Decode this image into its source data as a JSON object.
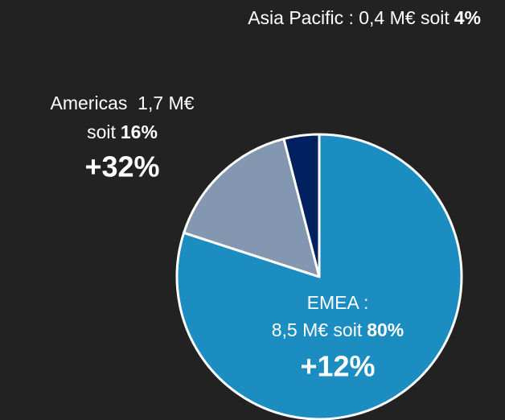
{
  "chart_data": {
    "type": "pie",
    "categories": [
      "EMEA",
      "Americas",
      "Asia Pacific"
    ],
    "values": [
      80,
      16,
      4
    ],
    "value_labels": [
      "80%",
      "16%",
      "4%"
    ],
    "colors": [
      "#1b8dc1",
      "#8497b0",
      "#002060"
    ],
    "labels": [
      {
        "lines": [
          "EMEA :",
          "8,5 M€ soit"
        ],
        "growth": "+12%"
      },
      {
        "lines": [
          "Americas  1,7 M€",
          "soit"
        ],
        "growth": "+32%"
      },
      {
        "lines": [
          "Asia Pacific : 0,4 M€ soit"
        ]
      }
    ]
  }
}
